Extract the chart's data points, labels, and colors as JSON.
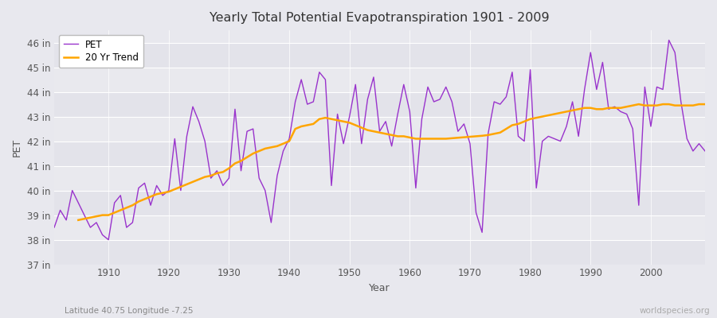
{
  "title": "Yearly Total Potential Evapotranspiration 1901 - 2009",
  "xlabel": "Year",
  "ylabel": "PET",
  "subtitle_left": "Latitude 40.75 Longitude -7.25",
  "subtitle_right": "worldspecies.org",
  "pet_color": "#9933CC",
  "trend_color": "#FFA500",
  "bg_color": "#E8E8EE",
  "grid_color": "#FFFFFF",
  "ylim": [
    37,
    46.5
  ],
  "xlim": [
    1901,
    2009
  ],
  "yticks": [
    37,
    38,
    39,
    40,
    41,
    42,
    43,
    44,
    45,
    46
  ],
  "ytick_labels": [
    "37 in",
    "38 in",
    "39 in",
    "40 in",
    "41 in",
    "42 in",
    "43 in",
    "44 in",
    "45 in",
    "46 in"
  ],
  "xtick_positions": [
    1910,
    1920,
    1930,
    1940,
    1950,
    1960,
    1970,
    1980,
    1990,
    2000
  ],
  "years": [
    1901,
    1902,
    1903,
    1904,
    1905,
    1906,
    1907,
    1908,
    1909,
    1910,
    1911,
    1912,
    1913,
    1914,
    1915,
    1916,
    1917,
    1918,
    1919,
    1920,
    1921,
    1922,
    1923,
    1924,
    1925,
    1926,
    1927,
    1928,
    1929,
    1930,
    1931,
    1932,
    1933,
    1934,
    1935,
    1936,
    1937,
    1938,
    1939,
    1940,
    1941,
    1942,
    1943,
    1944,
    1945,
    1946,
    1947,
    1948,
    1949,
    1950,
    1951,
    1952,
    1953,
    1954,
    1955,
    1956,
    1957,
    1958,
    1959,
    1960,
    1961,
    1962,
    1963,
    1964,
    1965,
    1966,
    1967,
    1968,
    1969,
    1970,
    1971,
    1972,
    1973,
    1974,
    1975,
    1976,
    1977,
    1978,
    1979,
    1980,
    1981,
    1982,
    1983,
    1984,
    1985,
    1986,
    1987,
    1988,
    1989,
    1990,
    1991,
    1992,
    1993,
    1994,
    1995,
    1996,
    1997,
    1998,
    1999,
    2000,
    2001,
    2002,
    2003,
    2004,
    2005,
    2006,
    2007,
    2008,
    2009
  ],
  "pet_values": [
    38.5,
    39.2,
    38.8,
    40.0,
    39.5,
    39.0,
    38.5,
    38.7,
    38.2,
    38.0,
    39.5,
    39.8,
    38.5,
    38.7,
    40.1,
    40.3,
    39.4,
    40.2,
    39.8,
    40.0,
    42.1,
    40.0,
    42.2,
    43.4,
    42.8,
    42.0,
    40.5,
    40.8,
    40.2,
    40.5,
    43.3,
    40.8,
    42.4,
    42.5,
    40.5,
    40.0,
    38.7,
    40.6,
    41.6,
    42.1,
    43.6,
    44.5,
    43.5,
    43.6,
    44.8,
    44.5,
    40.2,
    43.1,
    41.9,
    43.0,
    44.3,
    41.9,
    43.7,
    44.6,
    42.4,
    42.8,
    41.8,
    43.1,
    44.3,
    43.2,
    40.1,
    42.9,
    44.2,
    43.6,
    43.7,
    44.2,
    43.6,
    42.4,
    42.7,
    41.9,
    39.1,
    38.3,
    42.3,
    43.6,
    43.5,
    43.8,
    44.8,
    42.2,
    42.0,
    44.9,
    40.1,
    42.0,
    42.2,
    42.1,
    42.0,
    42.6,
    43.6,
    42.2,
    44.1,
    45.6,
    44.1,
    45.2,
    43.3,
    43.4,
    43.2,
    43.1,
    42.5,
    39.4,
    44.2,
    42.6,
    44.2,
    44.1,
    46.1,
    45.6,
    43.6,
    42.1,
    41.6,
    41.9,
    41.6
  ],
  "trend_years": [
    1905,
    1906,
    1907,
    1908,
    1909,
    1910,
    1911,
    1912,
    1913,
    1914,
    1915,
    1916,
    1917,
    1918,
    1919,
    1920,
    1921,
    1922,
    1923,
    1924,
    1925,
    1926,
    1927,
    1928,
    1929,
    1930,
    1931,
    1932,
    1933,
    1934,
    1935,
    1936,
    1937,
    1938,
    1939,
    1940,
    1941,
    1942,
    1943,
    1944,
    1945,
    1946,
    1947,
    1948,
    1949,
    1950,
    1951,
    1952,
    1953,
    1954,
    1955,
    1956,
    1957,
    1958,
    1959,
    1960,
    1961,
    1962,
    1963,
    1964,
    1965,
    1966,
    1967,
    1968,
    1969,
    1970,
    1971,
    1972,
    1973,
    1974,
    1975,
    1976,
    1977,
    1978,
    1979,
    1980,
    1981,
    1982,
    1983,
    1984,
    1985,
    1986,
    1987,
    1988,
    1989,
    1990,
    1991,
    1992,
    1993,
    1994,
    1995,
    1996,
    1997,
    1998,
    1999,
    2000,
    2001,
    2002,
    2003,
    2004,
    2005,
    2006,
    2007,
    2008,
    2009
  ],
  "trend_values": [
    38.8,
    38.85,
    38.9,
    38.95,
    39.0,
    39.0,
    39.1,
    39.2,
    39.3,
    39.4,
    39.55,
    39.65,
    39.75,
    39.85,
    39.9,
    39.95,
    40.05,
    40.15,
    40.25,
    40.35,
    40.45,
    40.55,
    40.6,
    40.7,
    40.75,
    40.9,
    41.1,
    41.2,
    41.35,
    41.5,
    41.6,
    41.7,
    41.75,
    41.8,
    41.9,
    42.0,
    42.5,
    42.6,
    42.65,
    42.7,
    42.9,
    42.95,
    42.9,
    42.85,
    42.8,
    42.75,
    42.65,
    42.55,
    42.45,
    42.4,
    42.35,
    42.3,
    42.25,
    42.2,
    42.2,
    42.15,
    42.1,
    42.1,
    42.1,
    42.1,
    42.1,
    42.1,
    42.12,
    42.14,
    42.16,
    42.18,
    42.2,
    42.22,
    42.25,
    42.3,
    42.35,
    42.5,
    42.65,
    42.7,
    42.8,
    42.9,
    42.95,
    43.0,
    43.05,
    43.1,
    43.15,
    43.2,
    43.25,
    43.3,
    43.35,
    43.35,
    43.3,
    43.3,
    43.35,
    43.35,
    43.35,
    43.4,
    43.45,
    43.5,
    43.45,
    43.45,
    43.45,
    43.5,
    43.5,
    43.45,
    43.45,
    43.45,
    43.45,
    43.5,
    43.5
  ]
}
